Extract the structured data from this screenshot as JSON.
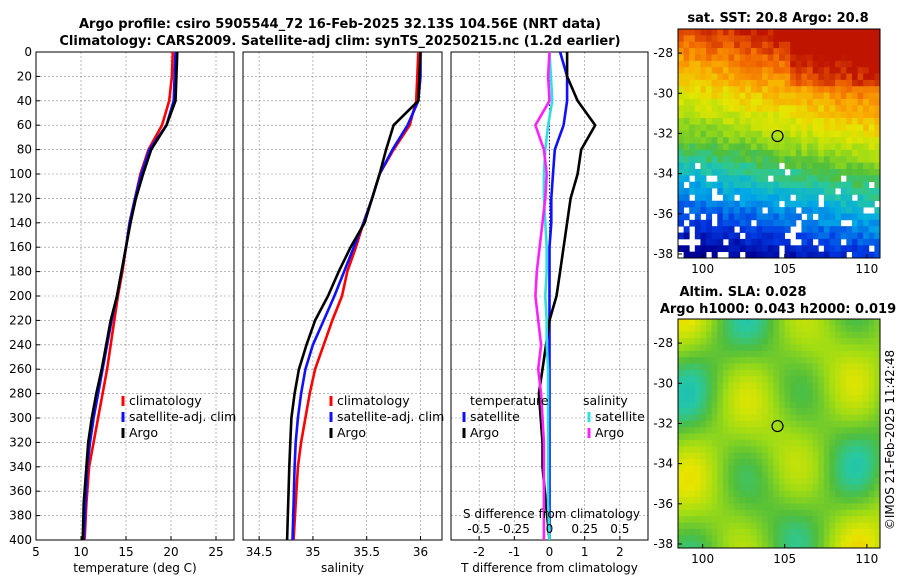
{
  "titles": {
    "line1": "Argo profile: csiro 5905544_72 16-Feb-2025 32.13S 104.56E (NRT data)",
    "line2": "Climatology: CARS2009. Satellite-adj clim: synTS_20250215.nc (1.2d earlier)",
    "sst_title": "sat. SST: 20.8 Argo: 20.8",
    "sla_title1": "Altim. SLA: 0.028",
    "sla_title2": "Argo h1000: 0.043 h2000: 0.019"
  },
  "credit": "©IMOS 21-Feb-2025 11:42:48",
  "colors": {
    "climatology": "#ff0000",
    "satellite": "#1010ff",
    "argo": "#000000",
    "temp_sat": "#1010ff",
    "sal_sat": "#30e0e0",
    "sal_argo": "#ff20ff"
  },
  "chart_data": [
    {
      "type": "line",
      "name": "temperature-profile",
      "xlabel": "temperature (deg C)",
      "ylabel": "",
      "xlim": [
        5,
        27
      ],
      "ylim": [
        400,
        0
      ],
      "xticks": [
        "5",
        "10",
        "15",
        "20",
        "25"
      ],
      "xtick_values": [
        5,
        10,
        15,
        20,
        25
      ],
      "yticks": [
        "0",
        "20",
        "40",
        "60",
        "80",
        "100",
        "120",
        "140",
        "160",
        "180",
        "200",
        "220",
        "240",
        "260",
        "280",
        "300",
        "320",
        "340",
        "360",
        "380",
        "400"
      ],
      "ytick_values": [
        0,
        20,
        40,
        60,
        80,
        100,
        120,
        140,
        160,
        180,
        200,
        220,
        240,
        260,
        280,
        300,
        320,
        340,
        360,
        380,
        400
      ],
      "grid": true,
      "legend": [
        "climatology",
        "satellite-adj. clim",
        "Argo"
      ],
      "legend_position": "lower-right",
      "series": [
        {
          "name": "climatology",
          "color": "#ff0000",
          "x": [
            20.2,
            20.1,
            19.8,
            19.0,
            17.5,
            16.6,
            16.0,
            15.4,
            15.0,
            14.6,
            14.1,
            13.7,
            13.3,
            12.9,
            12.4,
            11.9,
            11.4,
            10.9,
            10.6,
            10.4
          ],
          "y": [
            0,
            20,
            40,
            60,
            80,
            100,
            120,
            140,
            160,
            180,
            200,
            220,
            240,
            260,
            280,
            300,
            320,
            340,
            370,
            400
          ]
        },
        {
          "name": "satellite-adj. clim",
          "color": "#1010ff",
          "x": [
            20.5,
            20.4,
            20.3,
            19.5,
            17.6,
            16.7,
            16.0,
            15.4,
            15.0,
            14.5,
            14.0,
            13.4,
            12.9,
            12.4,
            11.9,
            11.4,
            11.0,
            10.7,
            10.5,
            10.3
          ],
          "y": [
            0,
            20,
            40,
            60,
            80,
            100,
            120,
            140,
            160,
            180,
            200,
            220,
            240,
            260,
            280,
            300,
            320,
            340,
            370,
            400
          ]
        },
        {
          "name": "Argo",
          "color": "#000000",
          "x": [
            20.7,
            20.6,
            20.5,
            19.5,
            17.8,
            16.9,
            16.1,
            15.5,
            15.0,
            14.5,
            14.0,
            13.3,
            12.8,
            12.3,
            11.7,
            11.2,
            10.8,
            10.6,
            10.3,
            10.2
          ],
          "y": [
            0,
            20,
            40,
            60,
            80,
            100,
            120,
            140,
            160,
            180,
            200,
            220,
            240,
            260,
            280,
            300,
            320,
            340,
            370,
            400
          ]
        }
      ]
    },
    {
      "type": "line",
      "name": "salinity-profile",
      "xlabel": "salinity",
      "xlim": [
        34.35,
        36.2
      ],
      "ylim": [
        400,
        0
      ],
      "xticks": [
        "34.5",
        "35",
        "35.5",
        "36"
      ],
      "xtick_values": [
        34.5,
        35,
        35.5,
        36
      ],
      "grid": true,
      "legend": [
        "climatology",
        "satellite-adj. clim",
        "Argo"
      ],
      "legend_position": "lower-right",
      "series": [
        {
          "name": "climatology",
          "color": "#ff0000",
          "x": [
            35.98,
            35.97,
            35.96,
            35.9,
            35.75,
            35.62,
            35.55,
            35.47,
            35.4,
            35.32,
            35.27,
            35.18,
            35.1,
            35.02,
            34.97,
            34.93,
            34.89,
            34.86,
            34.84,
            34.82
          ],
          "y": [
            0,
            20,
            40,
            60,
            80,
            100,
            120,
            140,
            160,
            180,
            200,
            220,
            240,
            260,
            280,
            300,
            320,
            340,
            370,
            400
          ]
        },
        {
          "name": "satellite-adj. clim",
          "color": "#1010ff",
          "x": [
            36.0,
            36.0,
            35.98,
            35.88,
            35.74,
            35.62,
            35.55,
            35.47,
            35.38,
            35.29,
            35.2,
            35.1,
            35.0,
            34.93,
            34.89,
            34.86,
            34.84,
            34.83,
            34.82,
            34.81
          ],
          "y": [
            0,
            20,
            40,
            60,
            80,
            100,
            120,
            140,
            160,
            180,
            200,
            220,
            240,
            260,
            280,
            300,
            320,
            340,
            370,
            400
          ]
        },
        {
          "name": "Argo",
          "color": "#000000",
          "x": [
            36.0,
            35.99,
            35.98,
            35.75,
            35.68,
            35.62,
            35.55,
            35.48,
            35.35,
            35.24,
            35.14,
            35.02,
            34.94,
            34.87,
            34.83,
            34.8,
            34.79,
            34.78,
            34.77,
            34.76
          ],
          "y": [
            0,
            20,
            40,
            60,
            80,
            100,
            120,
            140,
            160,
            180,
            200,
            220,
            240,
            260,
            280,
            300,
            320,
            340,
            370,
            400
          ]
        }
      ]
    },
    {
      "type": "line",
      "name": "difference-profile",
      "xlabel": "T difference from climatology",
      "x2label": "S difference from climatology",
      "xlim": [
        -2.8,
        2.8
      ],
      "ylim": [
        400,
        0
      ],
      "xticks": [
        "-2",
        "-1",
        "0",
        "1",
        "2"
      ],
      "xtick_values": [
        -2,
        -1,
        0,
        1,
        2
      ],
      "x2ticks": [
        "-0.5",
        "-0.25",
        "0",
        "0.25",
        "0.5"
      ],
      "x2tick_values": [
        -0.5,
        -0.25,
        0,
        0.25,
        0.5
      ],
      "grid": true,
      "legend_temperature": [
        "temperature",
        "satellite",
        "Argo"
      ],
      "legend_salinity": [
        "salinity",
        "satellite",
        "Argo"
      ],
      "series": [
        {
          "name": "temperature satellite",
          "color": "#1010ff",
          "x": [
            0.3,
            0.5,
            0.5,
            0.4,
            0.15,
            0.1,
            0.05,
            0.05,
            0.0,
            0.0,
            0.0,
            0.0,
            0.0,
            0.0,
            0.0,
            0.0,
            0.0,
            0.0,
            0.0,
            0.0
          ],
          "y": [
            0,
            20,
            40,
            60,
            80,
            100,
            120,
            140,
            160,
            180,
            200,
            220,
            240,
            260,
            280,
            300,
            320,
            340,
            370,
            400
          ]
        },
        {
          "name": "temperature Argo",
          "color": "#000000",
          "x": [
            0.5,
            0.5,
            0.8,
            1.3,
            0.9,
            0.8,
            0.6,
            0.5,
            0.4,
            0.3,
            0.2,
            0.0,
            -0.1,
            -0.2,
            -0.3,
            -0.25,
            -0.2,
            -0.2,
            -0.1,
            0.0
          ],
          "y": [
            0,
            20,
            40,
            60,
            80,
            100,
            120,
            140,
            160,
            180,
            200,
            220,
            240,
            260,
            280,
            300,
            320,
            340,
            370,
            400
          ]
        },
        {
          "name": "salinity satellite",
          "color": "#30e0e0",
          "x": [
            0.0,
            0.01,
            0.02,
            -0.01,
            -0.03,
            -0.04,
            -0.04,
            -0.03,
            -0.02,
            -0.02,
            -0.03,
            -0.02,
            -0.02,
            -0.01,
            -0.01,
            -0.01,
            -0.01,
            -0.01,
            -0.01,
            0.0
          ],
          "y": [
            0,
            20,
            40,
            60,
            80,
            100,
            120,
            140,
            160,
            180,
            200,
            220,
            240,
            260,
            280,
            300,
            320,
            340,
            370,
            400
          ]
        },
        {
          "name": "salinity Argo",
          "color": "#ff20ff",
          "x": [
            0.0,
            -0.01,
            0.0,
            -0.1,
            -0.04,
            -0.02,
            -0.03,
            -0.05,
            -0.07,
            -0.09,
            -0.1,
            -0.08,
            -0.06,
            -0.08,
            -0.06,
            -0.05,
            -0.04,
            -0.04,
            -0.04,
            -0.04
          ],
          "y": [
            0,
            20,
            40,
            60,
            80,
            100,
            120,
            140,
            160,
            180,
            200,
            220,
            240,
            260,
            280,
            300,
            320,
            340,
            370,
            400
          ]
        }
      ]
    },
    {
      "type": "heatmap",
      "name": "sst-map",
      "title": "sat. SST: 20.8 Argo: 20.8",
      "xlim": [
        98.5,
        110.8
      ],
      "ylim": [
        -38.2,
        -26.8
      ],
      "xticks": [
        "100",
        "105",
        "110"
      ],
      "xtick_values": [
        100,
        105,
        110
      ],
      "yticks": [
        "-28",
        "-30",
        "-32",
        "-34",
        "-36",
        "-38"
      ],
      "ytick_values": [
        -28,
        -30,
        -32,
        -34,
        -36,
        -38
      ],
      "argo_position": {
        "lon": 104.56,
        "lat": -32.13
      }
    },
    {
      "type": "heatmap",
      "name": "sla-map",
      "title": "Altim. SLA: 0.028",
      "subtitle": "Argo h1000: 0.043 h2000: 0.019",
      "xlim": [
        98.5,
        110.8
      ],
      "ylim": [
        -38.2,
        -26.8
      ],
      "xticks": [
        "100",
        "105",
        "110"
      ],
      "xtick_values": [
        100,
        105,
        110
      ],
      "yticks": [
        "-28",
        "-30",
        "-32",
        "-34",
        "-36",
        "-38"
      ],
      "ytick_values": [
        -28,
        -30,
        -32,
        -34,
        -36,
        -38
      ],
      "argo_position": {
        "lon": 104.56,
        "lat": -32.13
      }
    }
  ]
}
